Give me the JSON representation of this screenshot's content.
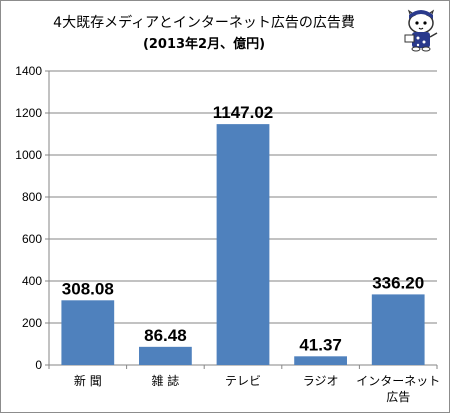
{
  "chart_data": {
    "type": "bar",
    "title": "4大既存メディアとインターネット広告の広告費",
    "subtitle": "(2013年2月、億円)",
    "categories": [
      [
        "新 聞"
      ],
      [
        "雑 誌"
      ],
      [
        "テレビ"
      ],
      [
        "ラジオ"
      ],
      [
        "インターネット",
        "広告"
      ]
    ],
    "values": [
      308.08,
      86.48,
      1147.02,
      41.37,
      336.2
    ],
    "value_labels": [
      "308.08",
      "86.48",
      "1147.02",
      "41.37",
      "336.20"
    ],
    "ylim": [
      0,
      1400
    ],
    "yticks": [
      0,
      200,
      400,
      600,
      800,
      1000,
      1200,
      1400
    ],
    "grid": true,
    "legend": "none",
    "xlabel": "",
    "ylabel": "",
    "bar_color": "#4f81bd"
  },
  "mascot": {
    "icon": "cat-mascot-icon"
  }
}
